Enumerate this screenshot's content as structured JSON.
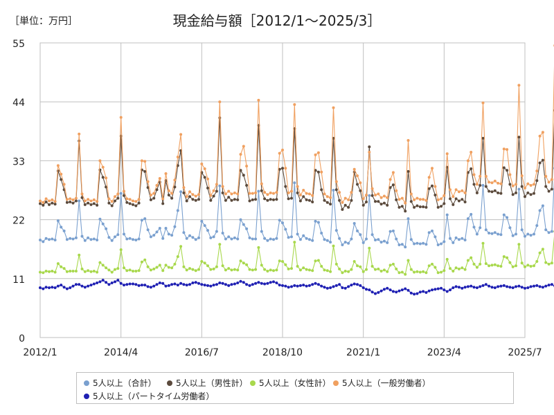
{
  "header": {
    "unit_label": "［単位：万円］",
    "title": "現金給与額［2012/1～2025/3］"
  },
  "chart_data": {
    "type": "line",
    "title": "現金給与額［2012/1～2025/3］",
    "unit": "［単位：万円］",
    "xlim": [
      "2012-01",
      "2025-07"
    ],
    "ylim": [
      0,
      55
    ],
    "x_ticks": [
      "2012/1",
      "2014/4",
      "2016/7",
      "2018/10",
      "2021/1",
      "2023/4",
      "2025/7"
    ],
    "y_ticks": [
      0,
      11,
      22,
      33,
      44,
      55
    ],
    "grid": true,
    "legend_position": "bottom",
    "x_start": "2012-01",
    "x_end": "2025-03",
    "series": [
      {
        "name": "5人以上（合計）",
        "color": "#7aa0cf",
        "values": [
          18.2,
          17.9,
          18.5,
          18.3,
          18.4,
          18.2,
          21.8,
          20.6,
          19.9,
          18.3,
          18.5,
          18.4,
          18.6,
          25.5,
          18.9,
          18.1,
          18.6,
          18.3,
          18.4,
          18.2,
          22.1,
          21.2,
          20.3,
          18.7,
          18.1,
          18.8,
          19.2,
          26.9,
          19.3,
          18.4,
          18.5,
          18.3,
          18.2,
          18.4,
          21.9,
          22.2,
          20.1,
          18.8,
          19.1,
          19.7,
          20.4,
          18.5,
          20.4,
          19.3,
          19.1,
          20.7,
          23.7,
          27.2,
          19.6,
          18.5,
          19.0,
          18.7,
          18.3,
          18.6,
          21.7,
          20.9,
          20.0,
          18.6,
          18.8,
          19.8,
          28.3,
          19.5,
          18.4,
          18.8,
          18.4,
          18.6,
          18.4,
          22.0,
          21.1,
          20.3,
          18.6,
          18.4,
          18.4,
          27.3,
          19.8,
          18.5,
          18.1,
          18.4,
          18.3,
          18.5,
          21.9,
          21.4,
          20.2,
          18.7,
          18.8,
          28.9,
          19.3,
          18.3,
          19.0,
          18.5,
          18.3,
          18.1,
          21.7,
          21.5,
          19.5,
          18.3,
          18.1,
          17.8,
          27.5,
          20.0,
          18.5,
          17.3,
          17.8,
          17.6,
          18.4,
          21.3,
          19.9,
          19.2,
          17.7,
          18.4,
          26.5,
          19.2,
          18.2,
          18.3,
          17.8,
          18.0,
          17.7,
          19.8,
          19.9,
          18.4,
          17.3,
          17.4,
          16.9,
          22.2,
          18.3,
          17.5,
          17.6,
          17.5,
          17.6,
          17.4,
          19.6,
          19.9,
          18.8,
          17.3,
          17.5,
          17.9,
          22.9,
          18.5,
          17.7,
          18.6,
          18.3,
          18.5,
          18.2,
          22.2,
          23.0,
          20.6,
          19.3,
          20.5,
          28.4,
          20.1,
          19.5,
          19.4,
          19.6,
          19.3,
          19.2,
          22.9,
          22.4,
          20.5,
          19.0,
          19.3,
          27.7,
          20.1,
          18.9,
          19.3,
          19.1,
          19.3,
          20.9,
          23.7,
          24.6,
          20.1,
          19.6,
          19.8,
          31.6,
          20.4,
          19.8,
          21.0
        ]
      },
      {
        "name": "5人以上（男性計）",
        "color": "#5b4a3c",
        "values": [
          25.0,
          24.7,
          25.3,
          24.8,
          25.1,
          24.9,
          31.1,
          29.5,
          27.6,
          25.2,
          25.3,
          25.1,
          25.5,
          36.7,
          26.1,
          24.8,
          25.1,
          24.8,
          25.0,
          24.7,
          31.3,
          29.9,
          28.1,
          25.1,
          24.6,
          25.5,
          26.0,
          37.6,
          26.5,
          25.2,
          25.0,
          24.8,
          24.6,
          25.1,
          31.3,
          31.0,
          28.0,
          25.7,
          26.0,
          27.6,
          29.0,
          25.0,
          29.3,
          26.6,
          26.0,
          28.1,
          32.1,
          34.9,
          27.0,
          25.5,
          26.3,
          25.8,
          25.6,
          25.8,
          30.8,
          29.9,
          27.9,
          25.6,
          26.4,
          27.3,
          41.0,
          27.0,
          25.6,
          26.2,
          25.6,
          25.8,
          25.7,
          31.2,
          30.3,
          28.4,
          25.5,
          25.7,
          25.8,
          39.6,
          27.4,
          25.9,
          25.6,
          25.8,
          25.7,
          25.8,
          31.4,
          31.6,
          28.2,
          25.9,
          26.0,
          39.0,
          27.0,
          25.5,
          26.3,
          25.7,
          25.6,
          25.3,
          31.2,
          30.9,
          27.6,
          25.6,
          25.2,
          24.9,
          37.2,
          27.6,
          25.6,
          23.9,
          24.7,
          24.3,
          25.6,
          30.9,
          28.6,
          27.4,
          24.7,
          25.3,
          35.6,
          26.5,
          25.4,
          25.4,
          24.9,
          25.1,
          24.7,
          28.0,
          28.5,
          25.7,
          24.3,
          24.5,
          23.6,
          31.0,
          25.4,
          24.3,
          24.6,
          24.4,
          24.4,
          24.3,
          27.8,
          28.3,
          26.6,
          24.3,
          24.5,
          25.0,
          31.8,
          25.9,
          24.8,
          25.9,
          25.5,
          25.8,
          25.3,
          30.8,
          31.5,
          28.6,
          27.0,
          28.4,
          37.2,
          28.2,
          27.3,
          27.2,
          27.4,
          27.0,
          26.9,
          31.7,
          31.2,
          28.6,
          26.7,
          27.0,
          37.4,
          28.2,
          26.3,
          27.0,
          26.7,
          26.9,
          29.3,
          32.6,
          33.1,
          28.2,
          27.3,
          27.7,
          42.4,
          28.6,
          27.7,
          29.4
        ]
      },
      {
        "name": "5人以上（女性計）",
        "color": "#a8d84c",
        "values": [
          12.2,
          12.1,
          12.4,
          12.3,
          12.4,
          12.2,
          13.8,
          13.2,
          12.9,
          12.3,
          12.4,
          12.4,
          12.4,
          15.4,
          12.8,
          12.3,
          12.5,
          12.3,
          12.4,
          12.2,
          14.0,
          13.5,
          13.0,
          12.6,
          12.2,
          12.7,
          12.9,
          16.4,
          13.0,
          12.5,
          12.6,
          12.4,
          12.4,
          12.5,
          14.1,
          14.5,
          13.2,
          12.6,
          12.8,
          13.1,
          13.5,
          12.5,
          13.5,
          13.1,
          13.0,
          13.7,
          15.1,
          17.0,
          13.2,
          12.6,
          12.9,
          12.7,
          12.5,
          12.7,
          14.2,
          13.9,
          13.4,
          12.7,
          12.8,
          13.2,
          17.4,
          13.4,
          12.6,
          12.9,
          12.6,
          12.7,
          12.6,
          14.3,
          13.9,
          13.6,
          12.7,
          12.6,
          12.7,
          16.8,
          13.5,
          12.7,
          12.4,
          12.6,
          12.5,
          12.6,
          14.3,
          14.2,
          13.6,
          12.8,
          12.9,
          17.8,
          13.3,
          12.6,
          13.0,
          12.7,
          12.6,
          12.5,
          14.3,
          14.4,
          13.3,
          12.6,
          12.5,
          12.3,
          17.1,
          13.7,
          12.8,
          12.1,
          12.4,
          12.3,
          12.7,
          14.2,
          13.4,
          13.2,
          12.3,
          12.7,
          16.7,
          13.3,
          12.7,
          12.8,
          12.4,
          12.6,
          12.3,
          13.5,
          13.7,
          12.8,
          12.1,
          12.2,
          11.8,
          14.4,
          12.7,
          12.2,
          12.3,
          12.2,
          12.3,
          12.1,
          13.4,
          13.7,
          13.1,
          12.1,
          12.2,
          12.5,
          14.6,
          12.9,
          12.4,
          13.0,
          12.8,
          13.0,
          12.7,
          14.4,
          14.9,
          13.7,
          13.1,
          13.7,
          17.6,
          13.8,
          13.4,
          13.5,
          13.6,
          13.4,
          13.3,
          15.1,
          14.9,
          14.0,
          13.2,
          13.4,
          17.4,
          13.9,
          13.2,
          13.5,
          13.3,
          13.4,
          14.2,
          15.8,
          16.5,
          14.0,
          13.7,
          13.9,
          19.8,
          14.1,
          13.8,
          14.6
        ]
      },
      {
        "name": "5人以上（一般労働者）",
        "color": "#f0a060",
        "values": [
          25.5,
          25.2,
          25.9,
          25.5,
          25.7,
          25.4,
          32.1,
          30.5,
          28.6,
          25.8,
          25.9,
          25.7,
          26.0,
          38.0,
          26.8,
          25.5,
          25.8,
          25.5,
          25.7,
          25.4,
          33.0,
          31.8,
          29.8,
          25.9,
          25.4,
          26.3,
          26.8,
          41.1,
          27.3,
          25.9,
          25.8,
          25.5,
          25.4,
          25.8,
          33.0,
          32.9,
          29.1,
          26.6,
          26.9,
          28.4,
          29.7,
          25.9,
          30.6,
          27.4,
          26.9,
          29.4,
          33.7,
          37.9,
          28.0,
          26.3,
          27.2,
          26.7,
          26.4,
          26.7,
          32.4,
          31.5,
          29.6,
          26.5,
          27.4,
          28.6,
          44.0,
          28.2,
          26.8,
          27.3,
          26.8,
          27.0,
          26.8,
          34.2,
          35.7,
          32.0,
          26.9,
          26.9,
          27.0,
          44.3,
          28.7,
          27.1,
          26.7,
          27.0,
          26.9,
          27.1,
          34.4,
          35.0,
          31.6,
          27.0,
          27.3,
          43.5,
          28.2,
          26.6,
          27.5,
          26.9,
          26.8,
          26.5,
          34.1,
          34.5,
          30.9,
          26.8,
          26.3,
          26.1,
          42.9,
          29.1,
          27.1,
          25.2,
          26.0,
          25.7,
          27.1,
          31.4,
          30.2,
          28.9,
          25.9,
          26.6,
          34.6,
          27.8,
          26.6,
          26.8,
          26.1,
          26.4,
          26.1,
          29.5,
          30.8,
          27.4,
          25.8,
          26.0,
          25.1,
          36.8,
          26.8,
          25.7,
          26.0,
          25.8,
          25.8,
          25.6,
          29.9,
          31.6,
          28.2,
          25.7,
          25.9,
          26.5,
          34.3,
          27.6,
          26.3,
          27.6,
          27.2,
          27.4,
          27.0,
          33.0,
          34.6,
          30.4,
          28.6,
          30.1,
          43.8,
          30.1,
          29.0,
          28.9,
          29.2,
          28.8,
          28.7,
          35.2,
          35.1,
          30.4,
          28.3,
          28.6,
          47.1,
          30.2,
          27.9,
          28.7,
          28.4,
          28.6,
          31.1,
          37.6,
          38.3,
          30.1,
          29.0,
          29.5,
          54.5,
          30.7,
          29.6,
          31.8
        ]
      },
      {
        "name": "5人以上（パートタイム労働者）",
        "color": "#1f20b3",
        "values": [
          9.3,
          9.1,
          9.4,
          9.3,
          9.4,
          9.3,
          9.6,
          9.8,
          9.4,
          9.1,
          9.3,
          9.6,
          9.9,
          9.9,
          9.6,
          9.4,
          9.6,
          9.8,
          10.0,
          10.2,
          10.4,
          10.7,
          10.3,
          9.9,
          10.2,
          10.4,
          10.7,
          10.1,
          9.8,
          9.9,
          10.0,
          10.0,
          9.9,
          9.7,
          9.8,
          9.8,
          9.5,
          9.4,
          9.6,
          9.9,
          10.2,
          10.1,
          9.6,
          9.7,
          9.9,
          10.0,
          9.8,
          10.1,
          9.9,
          9.8,
          9.9,
          10.2,
          10.3,
          10.1,
          9.9,
          9.8,
          9.7,
          9.6,
          9.8,
          9.9,
          10.2,
          10.1,
          9.9,
          9.7,
          9.9,
          10.0,
          10.2,
          10.5,
          10.3,
          9.9,
          9.7,
          9.9,
          10.1,
          10.3,
          10.1,
          10.0,
          10.1,
          10.3,
          10.4,
          10.2,
          9.8,
          9.7,
          9.6,
          9.4,
          9.5,
          9.7,
          9.6,
          9.7,
          9.8,
          9.6,
          9.7,
          9.9,
          10.1,
          9.9,
          9.6,
          9.4,
          9.2,
          9.3,
          9.5,
          9.7,
          9.9,
          9.3,
          9.2,
          9.5,
          9.8,
          10.0,
          9.9,
          9.7,
          9.3,
          9.0,
          8.9,
          8.5,
          8.2,
          8.4,
          8.7,
          9.0,
          9.2,
          8.9,
          8.6,
          8.5,
          8.7,
          8.9,
          9.1,
          8.8,
          8.3,
          8.1,
          8.2,
          8.5,
          8.6,
          8.4,
          8.7,
          8.9,
          9.0,
          9.1,
          9.2,
          8.9,
          8.6,
          8.9,
          9.3,
          9.5,
          9.4,
          9.2,
          9.4,
          9.5,
          9.6,
          9.4,
          9.3,
          9.5,
          9.7,
          9.9,
          9.6,
          9.4,
          9.3,
          9.5,
          9.6,
          9.7,
          9.5,
          9.4,
          9.3,
          9.5,
          9.6,
          9.4,
          9.2,
          9.3,
          9.5,
          9.6,
          9.7,
          9.5,
          9.4,
          9.6,
          9.8,
          9.9,
          9.6,
          9.4,
          9.7,
          9.8
        ]
      }
    ]
  }
}
